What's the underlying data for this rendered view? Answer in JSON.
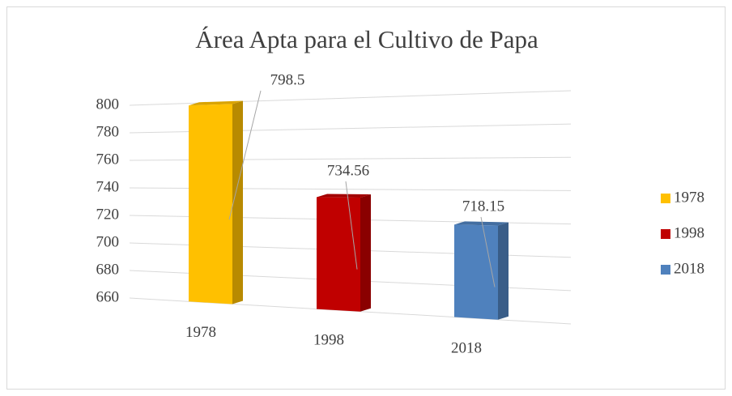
{
  "chart_data": {
    "type": "bar3d",
    "title": "Área Apta para el Cultivo de Papa",
    "categories": [
      "1978",
      "1998",
      "2018"
    ],
    "series": [
      {
        "name": "1978",
        "color": "#FFC000",
        "values": [
          798.5,
          null,
          null
        ]
      },
      {
        "name": "1998",
        "color": "#C00000",
        "values": [
          null,
          734.56,
          null
        ]
      },
      {
        "name": "2018",
        "color": "#4F81BD",
        "values": [
          null,
          null,
          718.15
        ]
      }
    ],
    "ylim": [
      660,
      800
    ],
    "yticks": [
      660,
      680,
      700,
      720,
      740,
      760,
      780,
      800
    ],
    "grid": true,
    "legend": "right"
  }
}
